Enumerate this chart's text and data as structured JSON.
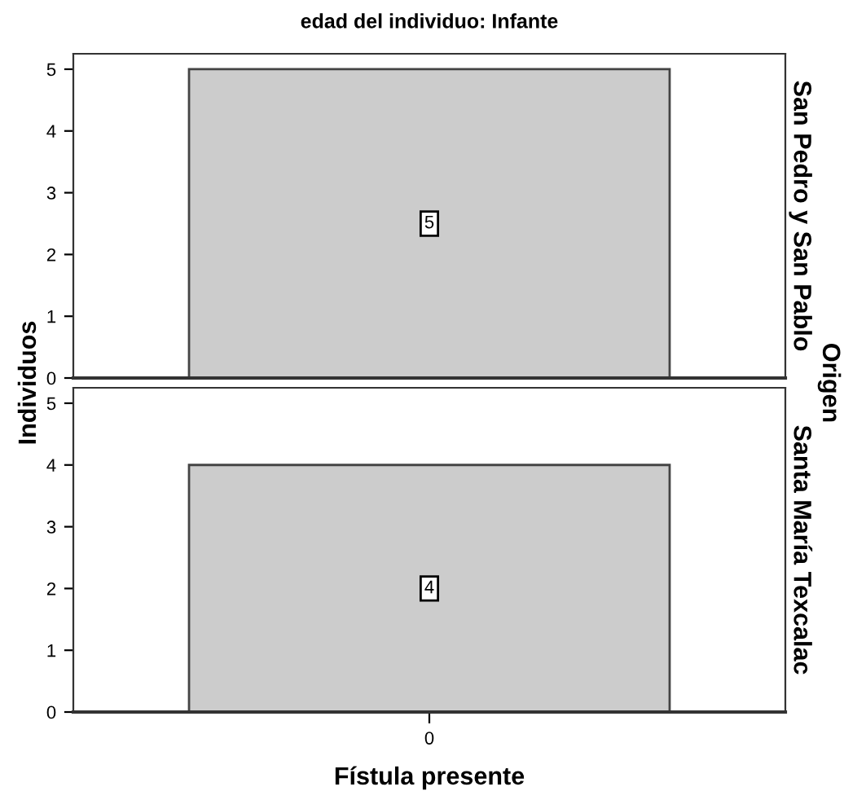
{
  "chart_data": [
    {
      "type": "bar",
      "title": "edad del individuo: Infante",
      "ylabel": "Individuos",
      "y2label": "Origen",
      "annotations": [
        "San Pedro y San Pablo"
      ],
      "categories": [
        null
      ],
      "values": [
        5
      ],
      "color": "#cccccc",
      "data_labels": true,
      "ylim": [
        0,
        5.25
      ],
      "yticks": [
        0,
        1,
        2,
        3,
        4,
        5
      ],
      "tick_labels": "y",
      "grid": false,
      "legend": false
    },
    {
      "type": "bar",
      "xlabel": "Fístula presente",
      "annotations": [
        "Santa María Texcalac"
      ],
      "categories": [
        "0"
      ],
      "values": [
        4
      ],
      "color": "#cccccc",
      "data_labels": true,
      "ylim": [
        0,
        5.25
      ],
      "yticks": [
        0,
        1,
        2,
        3,
        4,
        5
      ],
      "grid": false,
      "legend": false
    }
  ]
}
